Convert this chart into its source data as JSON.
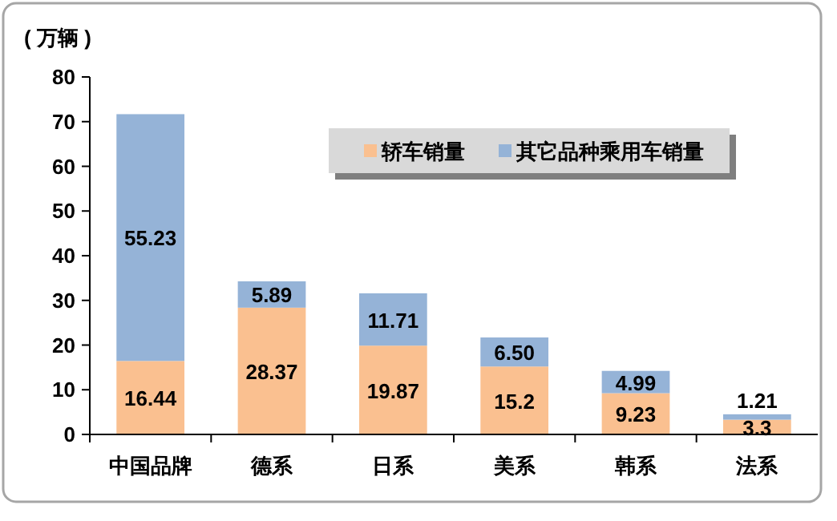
{
  "chart_data": {
    "type": "bar",
    "stacked": true,
    "ylabel": "( 万辆 )",
    "categories": [
      "中国品牌",
      "德系",
      "日系",
      "美系",
      "韩系",
      "法系"
    ],
    "series": [
      {
        "name": "轿车销量",
        "color": "#fac090",
        "values": [
          16.44,
          28.37,
          19.87,
          15.2,
          9.23,
          3.3
        ],
        "value_labels": [
          "16.44",
          "28.37",
          "19.87",
          "15.2",
          "9.23",
          "3.3"
        ]
      },
      {
        "name": "其它品种乘用车销量",
        "color": "#95b3d7",
        "values": [
          55.23,
          5.89,
          11.71,
          6.5,
          4.99,
          1.21
        ],
        "value_labels": [
          "55.23",
          "5.89",
          "11.71",
          "6.50",
          "4.99",
          "1.21"
        ]
      }
    ],
    "ylim": [
      0,
      80
    ],
    "yticks": [
      0,
      10,
      20,
      30,
      40,
      50,
      60,
      70,
      80
    ],
    "grid": false,
    "legend": "top right"
  }
}
